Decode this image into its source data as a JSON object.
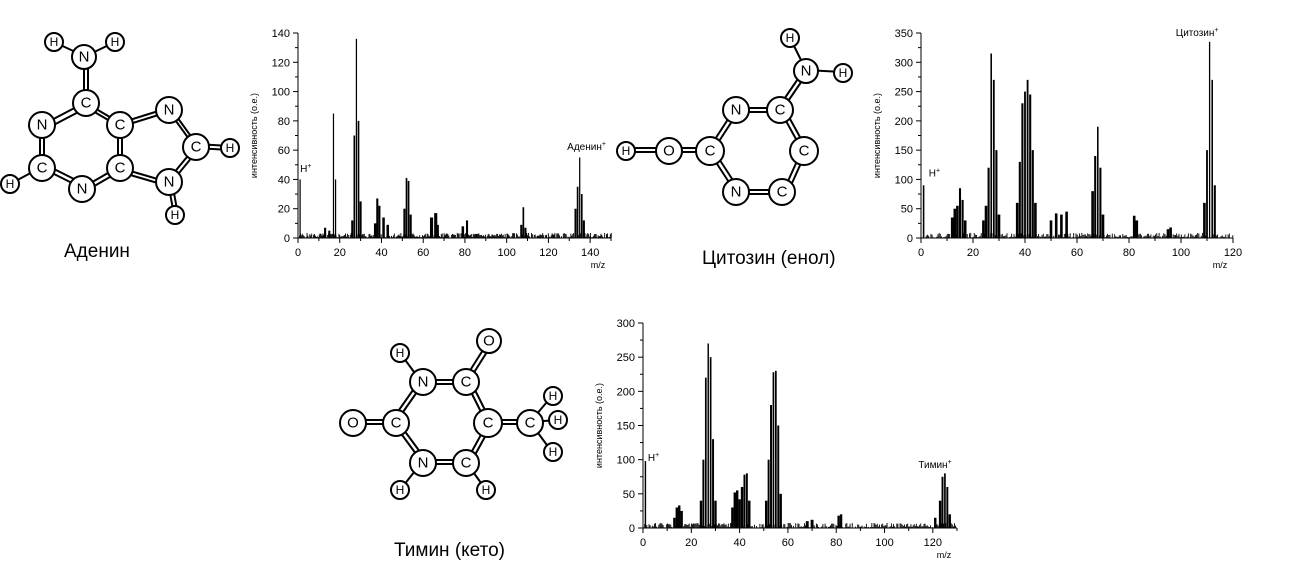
{
  "molecules": [
    {
      "id": "adenine",
      "name": "Аденин"
    },
    {
      "id": "cytosine",
      "name": "Цитозин (енол)"
    },
    {
      "id": "thymine",
      "name": "Тимин (кето)"
    }
  ],
  "chart_data": [
    {
      "type": "bar",
      "id": "adenine",
      "xlabel": "m/z",
      "ylabel": "интенсивность (о.е.)",
      "xlim": [
        0,
        150
      ],
      "ylim": [
        0,
        140
      ],
      "xticks": [
        0,
        20,
        40,
        60,
        80,
        100,
        120,
        140
      ],
      "yticks": [
        0,
        20,
        40,
        60,
        80,
        100,
        120,
        140
      ],
      "annotations": [
        {
          "text": "H",
          "sup": "+",
          "x": 1,
          "y": 45
        },
        {
          "text": "Аденин",
          "sup": "+",
          "x": 129,
          "y": 60
        }
      ],
      "peaks": [
        {
          "x": 1,
          "y": 40,
          "w": 0.6
        },
        {
          "x": 13,
          "y": 7,
          "w": 1
        },
        {
          "x": 15,
          "y": 5,
          "w": 1
        },
        {
          "x": 17,
          "y": 85,
          "w": 0.5
        },
        {
          "x": 18,
          "y": 40,
          "w": 0.6
        },
        {
          "x": 26,
          "y": 12,
          "w": 1
        },
        {
          "x": 27,
          "y": 70,
          "w": 0.8
        },
        {
          "x": 28,
          "y": 136,
          "w": 0.6
        },
        {
          "x": 29,
          "y": 80,
          "w": 0.8
        },
        {
          "x": 30,
          "y": 25,
          "w": 1
        },
        {
          "x": 37,
          "y": 10,
          "w": 1.2
        },
        {
          "x": 38,
          "y": 27,
          "w": 1
        },
        {
          "x": 39,
          "y": 22,
          "w": 1
        },
        {
          "x": 41,
          "y": 14,
          "w": 1.2
        },
        {
          "x": 43,
          "y": 9,
          "w": 1.2
        },
        {
          "x": 51,
          "y": 20,
          "w": 1
        },
        {
          "x": 52,
          "y": 41,
          "w": 0.8
        },
        {
          "x": 53,
          "y": 39,
          "w": 0.8
        },
        {
          "x": 54,
          "y": 16,
          "w": 1
        },
        {
          "x": 64,
          "y": 14,
          "w": 1.5
        },
        {
          "x": 66,
          "y": 17,
          "w": 1.5
        },
        {
          "x": 67,
          "y": 9,
          "w": 1
        },
        {
          "x": 79,
          "y": 8,
          "w": 1.2
        },
        {
          "x": 81,
          "y": 12,
          "w": 1
        },
        {
          "x": 107,
          "y": 9,
          "w": 1
        },
        {
          "x": 108,
          "y": 21,
          "w": 0.8
        },
        {
          "x": 109,
          "y": 7,
          "w": 1
        },
        {
          "x": 133,
          "y": 20,
          "w": 1
        },
        {
          "x": 134,
          "y": 35,
          "w": 0.8
        },
        {
          "x": 135,
          "y": 55,
          "w": 0.6
        },
        {
          "x": 136,
          "y": 30,
          "w": 0.8
        },
        {
          "x": 137,
          "y": 12,
          "w": 1
        }
      ]
    },
    {
      "type": "bar",
      "id": "cytosine",
      "xlabel": "m/z",
      "ylabel": "интенсивность (о.е.)",
      "xlim": [
        0,
        120
      ],
      "ylim": [
        0,
        350
      ],
      "xticks": [
        0,
        20,
        40,
        60,
        80,
        100,
        120
      ],
      "yticks": [
        0,
        50,
        100,
        150,
        200,
        250,
        300,
        350
      ],
      "annotations": [
        {
          "text": "H",
          "sup": "+",
          "x": 3,
          "y": 105
        },
        {
          "text": "Цитозин",
          "sup": "+",
          "x": 98,
          "y": 345
        }
      ],
      "peaks": [
        {
          "x": 1,
          "y": 90,
          "w": 0.6
        },
        {
          "x": 12,
          "y": 35,
          "w": 1
        },
        {
          "x": 13,
          "y": 50,
          "w": 1
        },
        {
          "x": 14,
          "y": 55,
          "w": 1
        },
        {
          "x": 15,
          "y": 85,
          "w": 0.8
        },
        {
          "x": 16,
          "y": 65,
          "w": 0.8
        },
        {
          "x": 17,
          "y": 30,
          "w": 1
        },
        {
          "x": 24,
          "y": 30,
          "w": 1
        },
        {
          "x": 25,
          "y": 55,
          "w": 1
        },
        {
          "x": 26,
          "y": 120,
          "w": 0.8
        },
        {
          "x": 27,
          "y": 315,
          "w": 0.6
        },
        {
          "x": 28,
          "y": 270,
          "w": 0.7
        },
        {
          "x": 29,
          "y": 150,
          "w": 0.8
        },
        {
          "x": 30,
          "y": 40,
          "w": 1
        },
        {
          "x": 37,
          "y": 60,
          "w": 1
        },
        {
          "x": 38,
          "y": 130,
          "w": 0.8
        },
        {
          "x": 39,
          "y": 230,
          "w": 0.8
        },
        {
          "x": 40,
          "y": 250,
          "w": 0.7
        },
        {
          "x": 41,
          "y": 270,
          "w": 0.7
        },
        {
          "x": 42,
          "y": 245,
          "w": 0.8
        },
        {
          "x": 43,
          "y": 150,
          "w": 0.8
        },
        {
          "x": 44,
          "y": 60,
          "w": 1
        },
        {
          "x": 50,
          "y": 30,
          "w": 1
        },
        {
          "x": 52,
          "y": 42,
          "w": 1
        },
        {
          "x": 54,
          "y": 40,
          "w": 1
        },
        {
          "x": 56,
          "y": 45,
          "w": 1
        },
        {
          "x": 66,
          "y": 80,
          "w": 1
        },
        {
          "x": 67,
          "y": 140,
          "w": 0.8
        },
        {
          "x": 68,
          "y": 190,
          "w": 0.6
        },
        {
          "x": 69,
          "y": 120,
          "w": 0.8
        },
        {
          "x": 70,
          "y": 40,
          "w": 1
        },
        {
          "x": 82,
          "y": 38,
          "w": 1
        },
        {
          "x": 83,
          "y": 30,
          "w": 1
        },
        {
          "x": 95,
          "y": 15,
          "w": 1
        },
        {
          "x": 96,
          "y": 18,
          "w": 1
        },
        {
          "x": 109,
          "y": 60,
          "w": 1
        },
        {
          "x": 110,
          "y": 150,
          "w": 0.7
        },
        {
          "x": 111,
          "y": 335,
          "w": 0.5
        },
        {
          "x": 112,
          "y": 270,
          "w": 0.6
        },
        {
          "x": 113,
          "y": 90,
          "w": 0.8
        }
      ]
    },
    {
      "type": "bar",
      "id": "thymine",
      "xlabel": "m/z",
      "ylabel": "интенсивность (о.е.)",
      "xlim": [
        0,
        130
      ],
      "ylim": [
        0,
        300
      ],
      "xticks": [
        0,
        20,
        40,
        60,
        80,
        100,
        120
      ],
      "yticks": [
        0,
        50,
        100,
        150,
        200,
        250,
        300
      ],
      "annotations": [
        {
          "text": "H",
          "sup": "+",
          "x": 2,
          "y": 98
        },
        {
          "text": "Тимин",
          "sup": "+",
          "x": 114,
          "y": 88
        }
      ],
      "peaks": [
        {
          "x": 1,
          "y": 98,
          "w": 0.6
        },
        {
          "x": 13,
          "y": 15,
          "w": 1
        },
        {
          "x": 14,
          "y": 30,
          "w": 1
        },
        {
          "x": 15,
          "y": 33,
          "w": 1
        },
        {
          "x": 16,
          "y": 25,
          "w": 1
        },
        {
          "x": 24,
          "y": 40,
          "w": 1
        },
        {
          "x": 25,
          "y": 100,
          "w": 0.8
        },
        {
          "x": 26,
          "y": 220,
          "w": 0.7
        },
        {
          "x": 27,
          "y": 270,
          "w": 0.6
        },
        {
          "x": 28,
          "y": 250,
          "w": 0.7
        },
        {
          "x": 29,
          "y": 130,
          "w": 0.8
        },
        {
          "x": 30,
          "y": 40,
          "w": 1
        },
        {
          "x": 37,
          "y": 30,
          "w": 1
        },
        {
          "x": 38,
          "y": 52,
          "w": 1
        },
        {
          "x": 39,
          "y": 55,
          "w": 1
        },
        {
          "x": 40,
          "y": 42,
          "w": 1
        },
        {
          "x": 41,
          "y": 60,
          "w": 1
        },
        {
          "x": 42,
          "y": 78,
          "w": 0.8
        },
        {
          "x": 43,
          "y": 80,
          "w": 0.8
        },
        {
          "x": 44,
          "y": 40,
          "w": 1
        },
        {
          "x": 51,
          "y": 40,
          "w": 1
        },
        {
          "x": 52,
          "y": 100,
          "w": 0.8
        },
        {
          "x": 53,
          "y": 180,
          "w": 0.8
        },
        {
          "x": 54,
          "y": 228,
          "w": 0.7
        },
        {
          "x": 55,
          "y": 230,
          "w": 0.7
        },
        {
          "x": 56,
          "y": 150,
          "w": 0.8
        },
        {
          "x": 57,
          "y": 50,
          "w": 1
        },
        {
          "x": 68,
          "y": 10,
          "w": 1.2
        },
        {
          "x": 70,
          "y": 12,
          "w": 1.2
        },
        {
          "x": 81,
          "y": 18,
          "w": 1
        },
        {
          "x": 82,
          "y": 20,
          "w": 1
        },
        {
          "x": 121,
          "y": 15,
          "w": 1
        },
        {
          "x": 123,
          "y": 40,
          "w": 1
        },
        {
          "x": 124,
          "y": 75,
          "w": 0.8
        },
        {
          "x": 125,
          "y": 80,
          "w": 0.7
        },
        {
          "x": 126,
          "y": 60,
          "w": 0.8
        },
        {
          "x": 127,
          "y": 20,
          "w": 1
        }
      ]
    }
  ]
}
